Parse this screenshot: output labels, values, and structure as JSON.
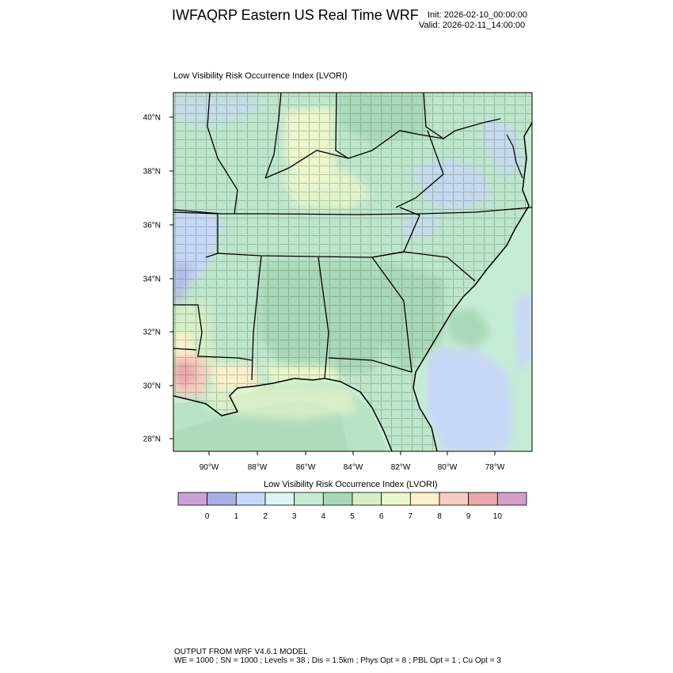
{
  "header": {
    "title": "IWFAQRP Eastern US Real Time WRF",
    "init": "Init: 2026-02-10_00:00:00",
    "valid": "Valid: 2026-02-11_14:00:00"
  },
  "map": {
    "subtitle": "Low Visibility Risk Occurrence Index   (LVORI)",
    "lat_ticks": [
      "40°N",
      "38°N",
      "36°N",
      "34°N",
      "32°N",
      "30°N",
      "28°N"
    ],
    "lon_ticks": [
      "90°W",
      "88°W",
      "86°W",
      "84°W",
      "82°W",
      "80°W",
      "78°W"
    ]
  },
  "colorbar": {
    "title": "Low Visibility Risk Occurrence Index  (LVORI)",
    "colors": [
      "#cba2d8",
      "#aab0e6",
      "#c7d7f7",
      "#d9f7f0",
      "#c6ecd6",
      "#a9d8b8",
      "#d6efc6",
      "#ecf7cc",
      "#fdf1cc",
      "#f8ccbe",
      "#eaa9ad",
      "#d49ec9"
    ],
    "labels": [
      "0",
      "1",
      "2",
      "3",
      "4",
      "5",
      "6",
      "7",
      "8",
      "9",
      "10"
    ]
  },
  "footer": {
    "line1": "OUTPUT FROM WRF V4.6.1 MODEL",
    "line2": "WE = 1000 ; SN = 1000 ; Levels = 38 ; Dis = 1.5km ; Phys Opt = 8 ; PBL Opt = 1 ; Cu Opt = 3"
  }
}
